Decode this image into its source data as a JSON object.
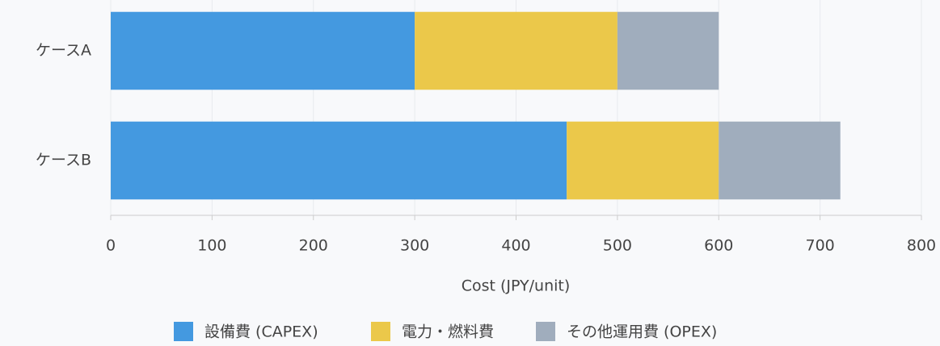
{
  "chart_data": {
    "type": "stacked_barh",
    "categories": [
      "ケースA",
      "ケースB"
    ],
    "series": [
      {
        "name": "設備費 (CAPEX)",
        "color": "#4499e0",
        "values": [
          300,
          450
        ]
      },
      {
        "name": "電力・燃料費",
        "color": "#ebc84a",
        "values": [
          200,
          150
        ]
      },
      {
        "name": "その他運用費 (OPEX)",
        "color": "#a0adbd",
        "values": [
          100,
          120
        ]
      }
    ],
    "xlabel": "Cost (JPY/unit)",
    "xlim": [
      0,
      800
    ],
    "xticks": [
      0,
      100,
      200,
      300,
      400,
      500,
      600,
      700,
      800
    ],
    "grid": true,
    "legend": "bottom"
  }
}
